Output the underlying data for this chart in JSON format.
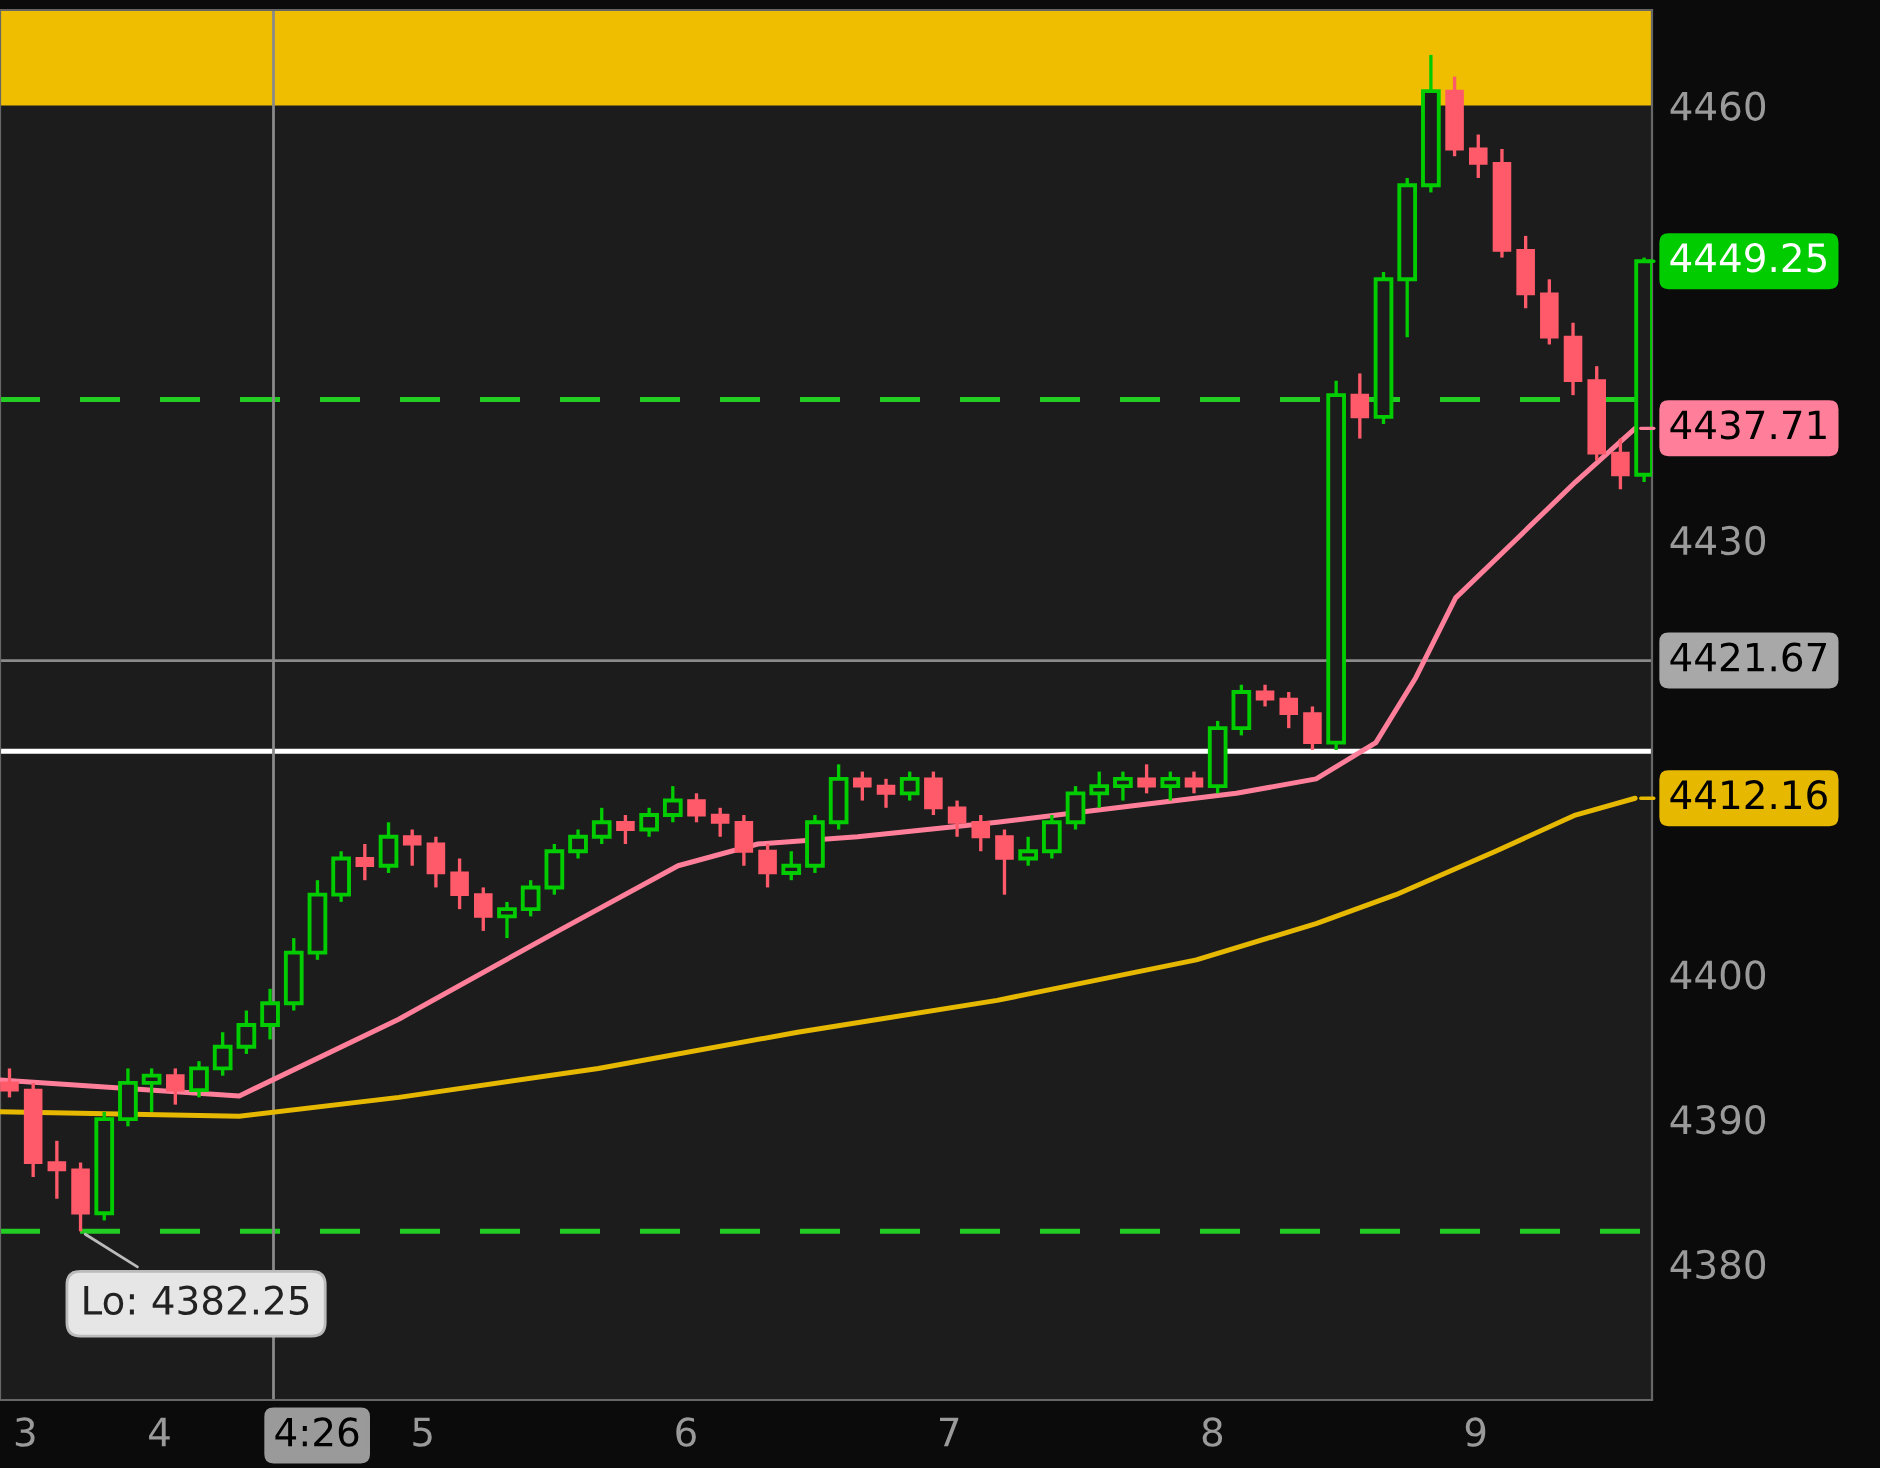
{
  "chart_data": {
    "type": "candlestick",
    "x": [
      3.43,
      3.52,
      3.61,
      3.7,
      3.79,
      3.88,
      3.97,
      4.06,
      4.15,
      4.24,
      4.33,
      4.42,
      4.51,
      4.6,
      4.69,
      4.78,
      4.87,
      4.96,
      5.05,
      5.14,
      5.23,
      5.32,
      5.41,
      5.5,
      5.59,
      5.68,
      5.77,
      5.86,
      5.95,
      6.04,
      6.13,
      6.22,
      6.31,
      6.4,
      6.49,
      6.58,
      6.67,
      6.76,
      6.85,
      6.94,
      7.03,
      7.12,
      7.21,
      7.3,
      7.39,
      7.48,
      7.57,
      7.66,
      7.75,
      7.84,
      7.93,
      8.02,
      8.11,
      8.2,
      8.29,
      8.38,
      8.47,
      8.56,
      8.65,
      8.74,
      8.83,
      8.92,
      9.01,
      9.1,
      9.19,
      9.28,
      9.37,
      9.46,
      9.55,
      9.64
    ],
    "ohlc": [
      [
        4392.5,
        4393.5,
        4391.5,
        4392
      ],
      [
        4392,
        4392.5,
        4386,
        4387
      ],
      [
        4387,
        4388.5,
        4384.5,
        4386.5
      ],
      [
        4386.5,
        4387,
        4382.25,
        4383.5
      ],
      [
        4383.5,
        4390.5,
        4383,
        4390
      ],
      [
        4390,
        4393.5,
        4389.5,
        4392.5
      ],
      [
        4392.5,
        4393.5,
        4390.5,
        4393
      ],
      [
        4393,
        4393.5,
        4391,
        4392
      ],
      [
        4392,
        4394,
        4391.5,
        4393.5
      ],
      [
        4393.5,
        4396,
        4393,
        4395
      ],
      [
        4395,
        4397.5,
        4394.5,
        4396.5
      ],
      [
        4396.5,
        4399,
        4395.5,
        4398
      ],
      [
        4398,
        4402.5,
        4397.5,
        4401.5
      ],
      [
        4401.5,
        4406.5,
        4401,
        4405.5
      ],
      [
        4405.5,
        4408.5,
        4405,
        4408
      ],
      [
        4408,
        4409,
        4406.5,
        4407.5
      ],
      [
        4407.5,
        4410.5,
        4407,
        4409.5
      ],
      [
        4409.5,
        4410,
        4407.5,
        4409
      ],
      [
        4409,
        4409.5,
        4406,
        4407
      ],
      [
        4407,
        4408,
        4404.5,
        4405.5
      ],
      [
        4405.5,
        4406,
        4403,
        4404
      ],
      [
        4404,
        4405,
        4402.5,
        4404.5
      ],
      [
        4404.5,
        4406.5,
        4404,
        4406
      ],
      [
        4406,
        4409,
        4405.5,
        4408.5
      ],
      [
        4408.5,
        4410,
        4408,
        4409.5
      ],
      [
        4409.5,
        4411.5,
        4409,
        4410.5
      ],
      [
        4410.5,
        4411,
        4409,
        4410
      ],
      [
        4410,
        4411.5,
        4409.5,
        4411
      ],
      [
        4411,
        4413,
        4410.5,
        4412
      ],
      [
        4412,
        4412.5,
        4410.5,
        4411
      ],
      [
        4411,
        4411.5,
        4409.5,
        4410.5
      ],
      [
        4410.5,
        4411,
        4407.5,
        4408.5
      ],
      [
        4408.5,
        4409,
        4406,
        4407
      ],
      [
        4407,
        4408.5,
        4406.5,
        4407.5
      ],
      [
        4407.5,
        4411,
        4407,
        4410.5
      ],
      [
        4410.5,
        4414.5,
        4410,
        4413.5
      ],
      [
        4413.5,
        4414,
        4412,
        4413
      ],
      [
        4413,
        4413.5,
        4411.5,
        4412.5
      ],
      [
        4412.5,
        4414,
        4412,
        4413.5
      ],
      [
        4413.5,
        4414,
        4411,
        4411.5
      ],
      [
        4411.5,
        4412,
        4409.5,
        4410.5
      ],
      [
        4410.5,
        4411,
        4408.5,
        4409.5
      ],
      [
        4409.5,
        4410,
        4405.5,
        4408
      ],
      [
        4408,
        4409.5,
        4407.5,
        4408.5
      ],
      [
        4408.5,
        4411,
        4408,
        4410.5
      ],
      [
        4410.5,
        4413,
        4410,
        4412.5
      ],
      [
        4412.5,
        4414,
        4411.5,
        4413
      ],
      [
        4413,
        4414,
        4412,
        4413.5
      ],
      [
        4413.5,
        4414.5,
        4412.5,
        4413
      ],
      [
        4413,
        4414,
        4412,
        4413.5
      ],
      [
        4413.5,
        4414,
        4412.5,
        4413
      ],
      [
        4413,
        4417.5,
        4412.5,
        4417
      ],
      [
        4417,
        4420,
        4416.5,
        4419.5
      ],
      [
        4419.5,
        4420,
        4418.5,
        4419
      ],
      [
        4419,
        4419.5,
        4417,
        4418
      ],
      [
        4418,
        4418.5,
        4415.5,
        4416
      ],
      [
        4416,
        4441,
        4415.5,
        4440
      ],
      [
        4440,
        4441.5,
        4437,
        4438.5
      ],
      [
        4438.5,
        4448.5,
        4438,
        4448
      ],
      [
        4448,
        4455,
        4444,
        4454.5
      ],
      [
        4454.5,
        4463.5,
        4454,
        4461
      ],
      [
        4461,
        4462,
        4456.5,
        4457
      ],
      [
        4457,
        4458,
        4455,
        4456
      ],
      [
        4456,
        4457,
        4449.5,
        4450
      ],
      [
        4450,
        4451,
        4446,
        4447
      ],
      [
        4447,
        4448,
        4443.5,
        4444
      ],
      [
        4444,
        4445,
        4440,
        4441
      ],
      [
        4441,
        4442,
        4435.5,
        4436
      ],
      [
        4436,
        4437,
        4433.5,
        4434.5
      ],
      [
        4434.5,
        4449.5,
        4434,
        4449.25
      ]
    ],
    "series": [
      {
        "type": "line",
        "color": "#ff7f9a",
        "x": [
          3.394,
          4.303,
          4.909,
          5.515,
          5.97,
          6.273,
          6.652,
          7.182,
          7.636,
          8.091,
          8.394,
          8.621,
          8.773,
          8.924,
          9.152,
          9.379,
          9.606
        ],
        "values": [
          4392.7,
          4391.6,
          4396.9,
          4403,
          4407.5,
          4409,
          4409.5,
          4410.5,
          4411.5,
          4412.5,
          4413.5,
          4416,
          4420.5,
          4426,
          4430,
          4434,
          4437.71
        ]
      },
      {
        "type": "line",
        "color": "#e6b800",
        "x": [
          3.394,
          4.303,
          4.909,
          5.667,
          6.424,
          7.182,
          7.939,
          8.394,
          8.697,
          9.076,
          9.379,
          9.606
        ],
        "values": [
          4390.5,
          4390.2,
          4391.5,
          4393.5,
          4396,
          4398.2,
          4401,
          4403.5,
          4405.5,
          4408.5,
          4411,
          4412.16
        ]
      }
    ],
    "xlim": [
      3.394,
      9.67
    ],
    "xticks": [
      {
        "value": 3.49,
        "label": "3"
      },
      4,
      5,
      6,
      7,
      8,
      9
    ],
    "ylim": [
      4370.6,
      4466.6
    ],
    "yticks": [
      4380,
      4390,
      4400,
      4430,
      4460
    ],
    "ref_lines": [
      {
        "axis": "y",
        "value": 4439.7,
        "color": "#22cc22",
        "line_style": "dashed"
      },
      {
        "axis": "y",
        "value": 4382.25,
        "color": "#22cc22",
        "line_style": "dashed"
      },
      {
        "axis": "y",
        "value": 4415.4,
        "color": "#ffffff",
        "line_style": "solid"
      },
      {
        "axis": "y",
        "value": 4421.67,
        "color": "#8a8a8a",
        "line_style": "solid",
        "label": "4421.67"
      },
      {
        "axis": "x",
        "value": 4.433,
        "color": "#8a8a8a",
        "line_style": "solid",
        "label": "4:26"
      }
    ],
    "bands": [
      {
        "axis": "y",
        "from": 4460,
        "to": 4466.6,
        "color": "#f0be00"
      }
    ],
    "annotations": [
      {
        "text": "Lo: 4382.25",
        "x": 3.7,
        "y": 4382.25
      },
      {
        "text": "4449.25",
        "x": 9.64,
        "y": 4449.25
      },
      {
        "text": "4437.71",
        "x": 9.606,
        "y": 4437.71
      },
      {
        "text": "4412.16",
        "x": 9.606,
        "y": 4412.16
      }
    ],
    "grid": false,
    "legend": false
  }
}
